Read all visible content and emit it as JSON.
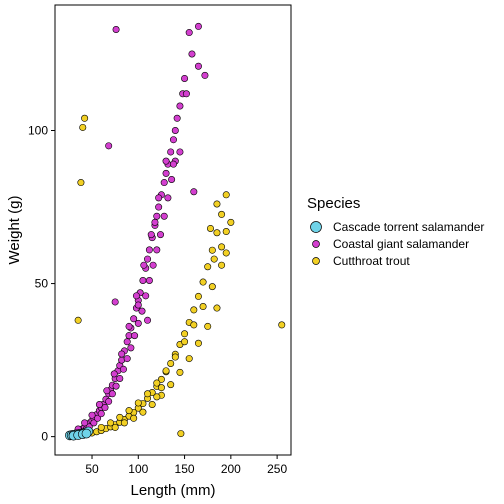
{
  "chart_data": {
    "type": "scatter",
    "xlabel": "Length (mm)",
    "ylabel": "Weight (g)",
    "xlim": [
      10,
      265
    ],
    "ylim": [
      -6,
      141
    ],
    "x_ticks": [
      50,
      100,
      150,
      200,
      250
    ],
    "y_ticks": [
      0,
      50,
      100
    ],
    "grid": false,
    "legend": {
      "title": "Species",
      "position": "right"
    },
    "series": [
      {
        "name": "Coastal giant salamander",
        "color": "#d33fcf",
        "size": "small",
        "points": [
          [
            25,
            0.6
          ],
          [
            28,
            0.8
          ],
          [
            30,
            1.0
          ],
          [
            33,
            1.3
          ],
          [
            35,
            1.6
          ],
          [
            38,
            2.1
          ],
          [
            40,
            2.6
          ],
          [
            42,
            3.0
          ],
          [
            45,
            3.8
          ],
          [
            48,
            4.6
          ],
          [
            50,
            5.2
          ],
          [
            52,
            6.0
          ],
          [
            55,
            7.2
          ],
          [
            58,
            8.5
          ],
          [
            60,
            9.5
          ],
          [
            62,
            10.5
          ],
          [
            65,
            12.2
          ],
          [
            68,
            14.0
          ],
          [
            70,
            15.3
          ],
          [
            72,
            16.8
          ],
          [
            75,
            19.0
          ],
          [
            78,
            21.5
          ],
          [
            80,
            23.2
          ],
          [
            82,
            25.0
          ],
          [
            85,
            28.0
          ],
          [
            88,
            31.0
          ],
          [
            90,
            33.0
          ],
          [
            92,
            35.5
          ],
          [
            95,
            38.5
          ],
          [
            98,
            42.0
          ],
          [
            100,
            44.5
          ],
          [
            102,
            47.0
          ],
          [
            105,
            51.0
          ],
          [
            108,
            55.0
          ],
          [
            110,
            58.0
          ],
          [
            112,
            61.0
          ],
          [
            115,
            65.0
          ],
          [
            118,
            69.0
          ],
          [
            120,
            72.0
          ],
          [
            122,
            75.0
          ],
          [
            125,
            79.0
          ],
          [
            128,
            83.0
          ],
          [
            130,
            86.0
          ],
          [
            132,
            89.0
          ],
          [
            135,
            93.0
          ],
          [
            138,
            97.0
          ],
          [
            140,
            100.0
          ],
          [
            142,
            104.0
          ],
          [
            145,
            108.0
          ],
          [
            148,
            112.0
          ],
          [
            150,
            117.0
          ],
          [
            40,
            1.5
          ],
          [
            44,
            2.6
          ],
          [
            47,
            3.2
          ],
          [
            52,
            4.5
          ],
          [
            56,
            6.0
          ],
          [
            60,
            7.5
          ],
          [
            64,
            9.5
          ],
          [
            68,
            11.5
          ],
          [
            72,
            14.0
          ],
          [
            76,
            16.5
          ],
          [
            80,
            19.0
          ],
          [
            84,
            22.0
          ],
          [
            88,
            25.5
          ],
          [
            92,
            29.0
          ],
          [
            96,
            33.0
          ],
          [
            100,
            37.0
          ],
          [
            104,
            41.0
          ],
          [
            108,
            46.0
          ],
          [
            112,
            51.0
          ],
          [
            116,
            56.0
          ],
          [
            120,
            61.0
          ],
          [
            124,
            66.0
          ],
          [
            128,
            72.0
          ],
          [
            132,
            78.0
          ],
          [
            136,
            84.0
          ],
          [
            140,
            90.0
          ],
          [
            35,
            2.5
          ],
          [
            42,
            4.5
          ],
          [
            50,
            7.0
          ],
          [
            58,
            10.5
          ],
          [
            66,
            15.0
          ],
          [
            74,
            20.5
          ],
          [
            82,
            27.0
          ],
          [
            90,
            36.0
          ],
          [
            98,
            46.0
          ],
          [
            106,
            56.0
          ],
          [
            114,
            66.0
          ],
          [
            122,
            78.0
          ],
          [
            130,
            90.0
          ],
          [
            76,
            133
          ],
          [
            155,
            132
          ],
          [
            165,
            134
          ],
          [
            158,
            125
          ],
          [
            172,
            118
          ],
          [
            165,
            121
          ],
          [
            152,
            112
          ],
          [
            68,
            95
          ],
          [
            100,
            43
          ],
          [
            75,
            44
          ],
          [
            110,
            38
          ],
          [
            138,
            89
          ],
          [
            145,
            93
          ],
          [
            160,
            80
          ],
          [
            118,
            70
          ]
        ]
      },
      {
        "name": "Cutthroat trout",
        "color": "#f2d024",
        "size": "small",
        "points": [
          [
            40,
            0.5
          ],
          [
            45,
            0.8
          ],
          [
            50,
            1.2
          ],
          [
            55,
            1.6
          ],
          [
            60,
            2.0
          ],
          [
            65,
            2.6
          ],
          [
            70,
            3.2
          ],
          [
            75,
            3.9
          ],
          [
            80,
            4.7
          ],
          [
            85,
            5.6
          ],
          [
            90,
            6.7
          ],
          [
            95,
            7.9
          ],
          [
            100,
            9.3
          ],
          [
            105,
            10.8
          ],
          [
            110,
            12.5
          ],
          [
            115,
            14.4
          ],
          [
            120,
            16.4
          ],
          [
            125,
            18.7
          ],
          [
            130,
            21.2
          ],
          [
            135,
            23.9
          ],
          [
            140,
            26.9
          ],
          [
            145,
            30.1
          ],
          [
            150,
            33.6
          ],
          [
            155,
            37.3
          ],
          [
            160,
            41.4
          ],
          [
            165,
            45.8
          ],
          [
            170,
            50.5
          ],
          [
            175,
            55.5
          ],
          [
            180,
            60.9
          ],
          [
            185,
            66.6
          ],
          [
            190,
            72.6
          ],
          [
            195,
            79.0
          ],
          [
            60,
            3.0
          ],
          [
            70,
            4.5
          ],
          [
            80,
            6.3
          ],
          [
            90,
            8.5
          ],
          [
            100,
            11.0
          ],
          [
            110,
            14.0
          ],
          [
            120,
            17.5
          ],
          [
            130,
            21.5
          ],
          [
            140,
            26.0
          ],
          [
            150,
            31.0
          ],
          [
            160,
            36.5
          ],
          [
            170,
            42.5
          ],
          [
            180,
            49.0
          ],
          [
            190,
            56.0
          ],
          [
            195,
            60.0
          ],
          [
            75,
            3.0
          ],
          [
            85,
            4.5
          ],
          [
            95,
            6.0
          ],
          [
            105,
            8.0
          ],
          [
            115,
            10.5
          ],
          [
            125,
            13.5
          ],
          [
            135,
            17.0
          ],
          [
            145,
            21.0
          ],
          [
            155,
            25.5
          ],
          [
            165,
            30.5
          ],
          [
            175,
            36.0
          ],
          [
            185,
            42.0
          ],
          [
            42,
            104
          ],
          [
            40,
            101
          ],
          [
            38,
            83
          ],
          [
            35,
            38
          ],
          [
            255,
            36.5
          ],
          [
            146,
            1.0
          ],
          [
            120,
            13
          ],
          [
            125,
            16
          ],
          [
            190,
            62
          ],
          [
            195,
            67
          ],
          [
            200,
            70
          ],
          [
            185,
            76
          ],
          [
            178,
            68
          ],
          [
            182,
            58
          ]
        ]
      },
      {
        "name": "Cascade torrent salamander",
        "color": "#6fd3e8",
        "size": "large",
        "points": [
          [
            26,
            0.4
          ],
          [
            28,
            0.5
          ],
          [
            30,
            0.6
          ],
          [
            32,
            0.7
          ],
          [
            34,
            0.8
          ],
          [
            36,
            0.9
          ],
          [
            38,
            1.0
          ],
          [
            40,
            1.1
          ],
          [
            42,
            1.3
          ],
          [
            44,
            1.5
          ],
          [
            46,
            1.7
          ],
          [
            30,
            0.3
          ],
          [
            35,
            0.5
          ],
          [
            40,
            0.8
          ],
          [
            44,
            1.0
          ]
        ]
      }
    ]
  }
}
